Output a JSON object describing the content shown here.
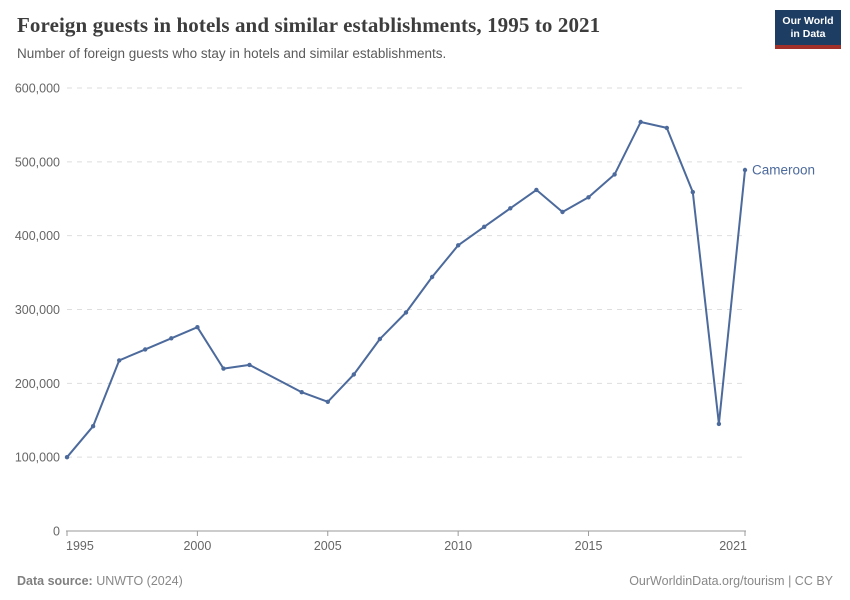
{
  "header": {
    "title": "Foreign guests in hotels and similar establishments, 1995 to 2021",
    "subtitle": "Number of foreign guests who stay in hotels and similar establishments.",
    "logo": {
      "line1": "Our World",
      "line2": "in Data"
    }
  },
  "chart_data": {
    "type": "line",
    "title": "Foreign guests in hotels and similar establishments, 1995 to 2021",
    "xlabel": "",
    "ylabel": "",
    "xlim": [
      1995,
      2021
    ],
    "ylim": [
      0,
      600000
    ],
    "x_ticks": [
      1995,
      2000,
      2005,
      2010,
      2015,
      2021
    ],
    "y_ticks": [
      0,
      100000,
      200000,
      300000,
      400000,
      500000,
      600000
    ],
    "grid": "horizontal-dashed",
    "legend_position": "end-of-line-label",
    "series": [
      {
        "name": "Cameroon",
        "color": "#4c6a9c",
        "points": [
          [
            1995,
            100000
          ],
          [
            1996,
            142000
          ],
          [
            1997,
            231000
          ],
          [
            1998,
            246000
          ],
          [
            1999,
            261000
          ],
          [
            2000,
            276000
          ],
          [
            2001,
            220000
          ],
          [
            2002,
            225000
          ],
          [
            2004,
            188000
          ],
          [
            2005,
            175000
          ],
          [
            2006,
            212000
          ],
          [
            2007,
            260000
          ],
          [
            2008,
            296000
          ],
          [
            2009,
            344000
          ],
          [
            2010,
            387000
          ],
          [
            2011,
            412000
          ],
          [
            2012,
            437000
          ],
          [
            2013,
            462000
          ],
          [
            2014,
            432000
          ],
          [
            2015,
            452000
          ],
          [
            2016,
            483000
          ],
          [
            2017,
            554000
          ],
          [
            2018,
            546000
          ],
          [
            2019,
            459000
          ],
          [
            2020,
            145000
          ],
          [
            2021,
            489000
          ]
        ],
        "note": "no data for 2003; line interpolates between 2002 and 2004"
      }
    ]
  },
  "footer": {
    "source_label": "Data source:",
    "source_value": " UNWTO (2024)",
    "link_text": "OurWorldinData.org/tourism",
    "separator": " | ",
    "license": "CC BY"
  },
  "colors": {
    "line": "#4c6a9c",
    "entity_label": "#4c6a9c",
    "grid": "#dedede",
    "axis": "#9a9a9a",
    "tick_text": "#666666",
    "title": "#3d3d3d",
    "subtitle": "#5b5b5b",
    "footer": "#888888",
    "logo_bg": "#1d3d63",
    "logo_accent": "#a2302a"
  }
}
